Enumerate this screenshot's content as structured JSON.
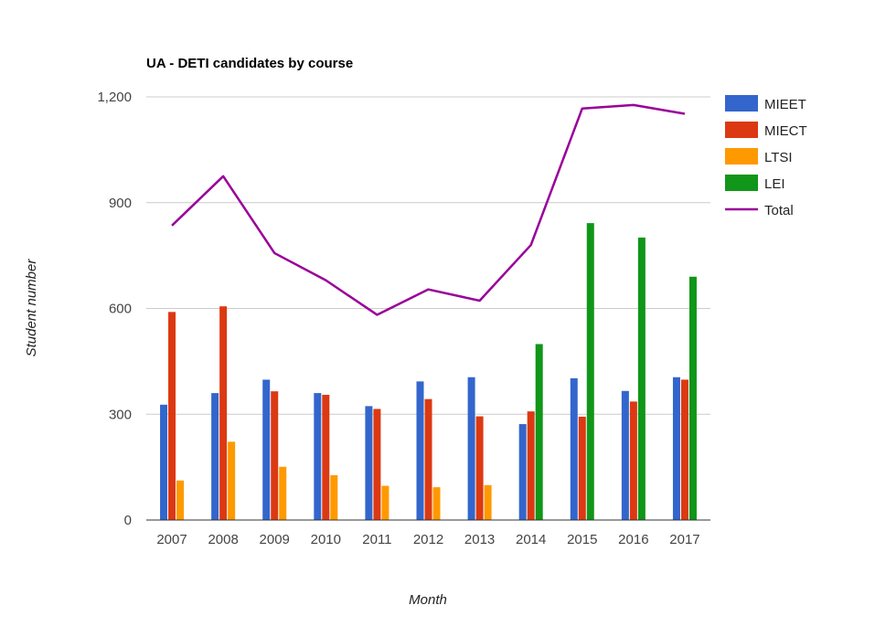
{
  "chart_data": {
    "type": "bar",
    "title": "UA - DETI candidates by course",
    "xlabel": "Month",
    "ylabel": "Student number",
    "categories": [
      "2007",
      "2008",
      "2009",
      "2010",
      "2011",
      "2012",
      "2013",
      "2014",
      "2015",
      "2016",
      "2017"
    ],
    "ylim": [
      0,
      1200
    ],
    "yticks": [
      "0",
      "300",
      "600",
      "900",
      "1,200"
    ],
    "yticks_values": [
      0,
      300,
      600,
      900,
      1200
    ],
    "grid": true,
    "legend_position": "right",
    "series": [
      {
        "name": "MIEET",
        "type": "bar",
        "color": "#3366cc",
        "values": [
          327,
          360,
          398,
          360,
          323,
          393,
          405,
          272,
          402,
          366,
          405
        ]
      },
      {
        "name": "MIECT",
        "type": "bar",
        "color": "#dc3912",
        "values": [
          590,
          606,
          365,
          355,
          315,
          343,
          294,
          308,
          293,
          336,
          398
        ]
      },
      {
        "name": "LTSI",
        "type": "bar",
        "color": "#ff9900",
        "values": [
          112,
          222,
          151,
          127,
          97,
          93,
          99,
          0,
          0,
          0,
          0
        ]
      },
      {
        "name": "LEI",
        "type": "bar",
        "color": "#109618",
        "values": [
          0,
          0,
          0,
          0,
          0,
          0,
          0,
          499,
          842,
          801,
          690
        ]
      },
      {
        "name": "Total",
        "type": "line",
        "color": "#990099",
        "values": [
          835,
          975,
          757,
          680,
          582,
          654,
          622,
          780,
          1167,
          1177,
          1152
        ]
      }
    ]
  }
}
